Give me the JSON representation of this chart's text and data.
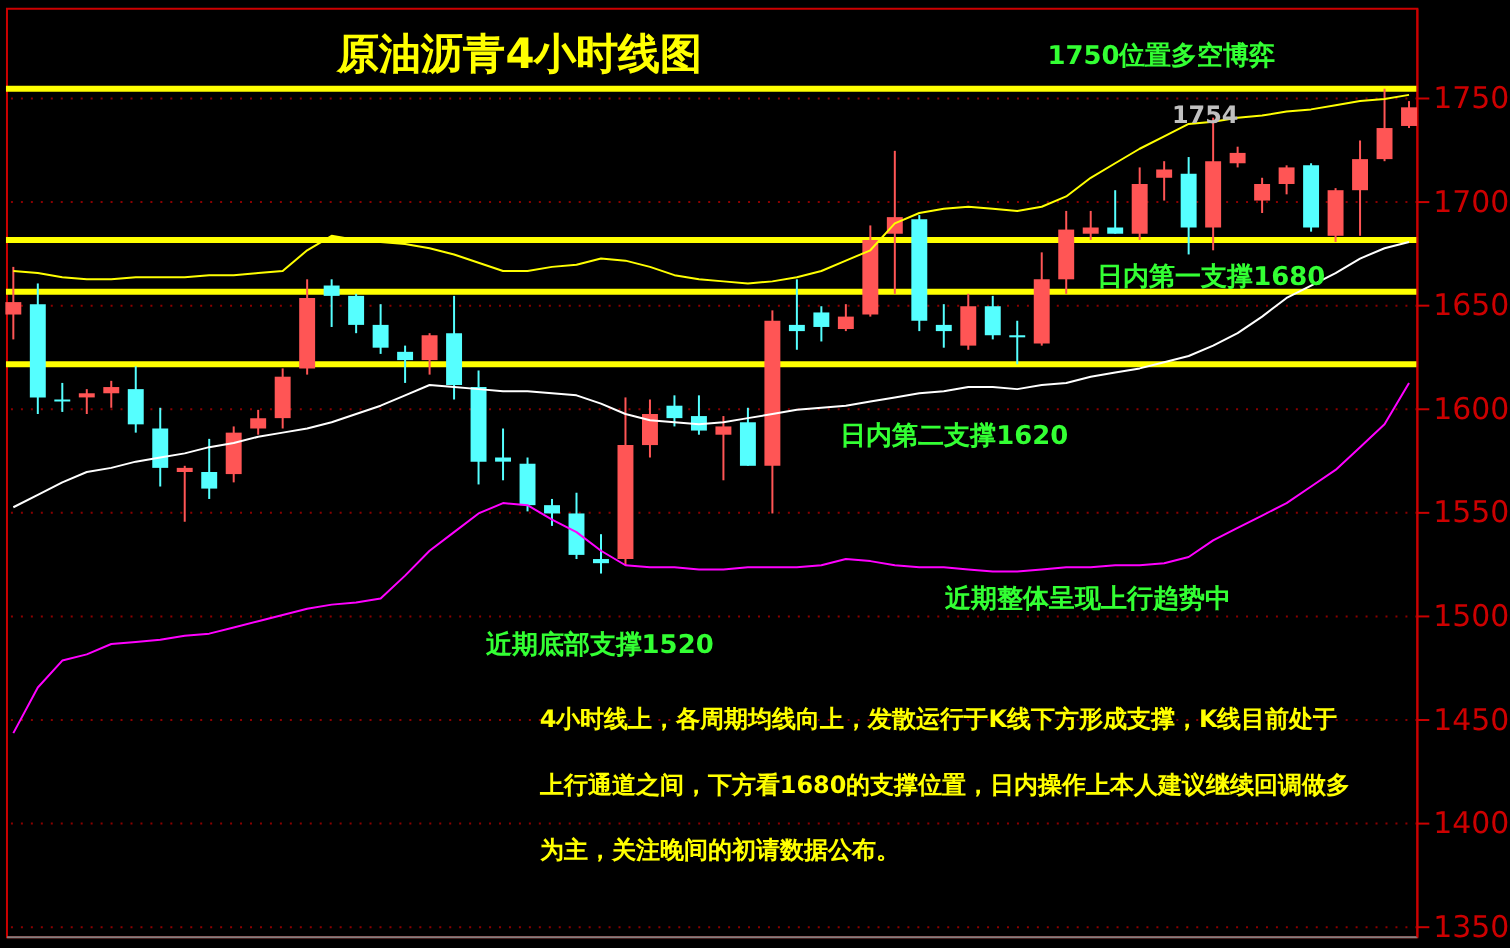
{
  "chart_data": {
    "type": "candlestick",
    "title": "原油沥青4小时线图",
    "categories": [
      null,
      null,
      null,
      null,
      null,
      null,
      null,
      null,
      null,
      null,
      null,
      null,
      null,
      null,
      null,
      null,
      null,
      null,
      null,
      null,
      null,
      null,
      null,
      null,
      null,
      null,
      null,
      null,
      null,
      null,
      null,
      null,
      null,
      null,
      null,
      null,
      null,
      null,
      null,
      null,
      null,
      null,
      null,
      null,
      null,
      null,
      null,
      null,
      null,
      null,
      null,
      null,
      null,
      null,
      null,
      null,
      null,
      null
    ],
    "ohlc": [
      [
        1645,
        1668,
        1633,
        1651
      ],
      [
        1650,
        1660,
        1597,
        1605
      ],
      [
        1604,
        1612,
        1598,
        1603
      ],
      [
        1605,
        1609,
        1597,
        1607
      ],
      [
        1607,
        1613,
        1600,
        1610
      ],
      [
        1609,
        1620,
        1588,
        1592
      ],
      [
        1590,
        1600,
        1562,
        1571
      ],
      [
        1569,
        1572,
        1545,
        1571
      ],
      [
        1569,
        1585,
        1556,
        1561
      ],
      [
        1568,
        1591,
        1564,
        1588
      ],
      [
        1590,
        1599,
        1587,
        1595
      ],
      [
        1595,
        1619,
        1590,
        1615
      ],
      [
        1619,
        1662,
        1616,
        1653
      ],
      [
        1659,
        1662,
        1639,
        1654
      ],
      [
        1654,
        1655,
        1636,
        1640
      ],
      [
        1640,
        1650,
        1626,
        1629
      ],
      [
        1627,
        1630,
        1612,
        1623
      ],
      [
        1623,
        1636,
        1616,
        1635
      ],
      [
        1636,
        1654,
        1604,
        1611
      ],
      [
        1610,
        1618,
        1563,
        1574
      ],
      [
        1576,
        1590,
        1565,
        1574
      ],
      [
        1573,
        1576,
        1550,
        1553
      ],
      [
        1553,
        1556,
        1543,
        1549
      ],
      [
        1549,
        1559,
        1527,
        1529
      ],
      [
        1527,
        1539,
        1520,
        1525
      ],
      [
        1527,
        1605,
        1524,
        1582
      ],
      [
        1582,
        1604,
        1576,
        1597
      ],
      [
        1601,
        1606,
        1591,
        1595
      ],
      [
        1596,
        1606,
        1587,
        1589
      ],
      [
        1587,
        1596,
        1565,
        1591
      ],
      [
        1593,
        1600,
        1572,
        1572
      ],
      [
        1572,
        1647,
        1549,
        1642
      ],
      [
        1640,
        1662,
        1628,
        1637
      ],
      [
        1646,
        1649,
        1632,
        1639
      ],
      [
        1638,
        1650,
        1637,
        1644
      ],
      [
        1645,
        1688,
        1644,
        1681
      ],
      [
        1684,
        1724,
        1655,
        1692
      ],
      [
        1691,
        1693,
        1637,
        1642
      ],
      [
        1640,
        1650,
        1629,
        1637
      ],
      [
        1630,
        1655,
        1628,
        1649
      ],
      [
        1649,
        1654,
        1633,
        1635
      ],
      [
        1635,
        1642,
        1621,
        1634
      ],
      [
        1631,
        1675,
        1630,
        1662
      ],
      [
        1662,
        1695,
        1655,
        1686
      ],
      [
        1684,
        1695,
        1681,
        1687
      ],
      [
        1687,
        1705,
        1684,
        1684
      ],
      [
        1684,
        1716,
        1681,
        1708
      ],
      [
        1711,
        1719,
        1700,
        1715
      ],
      [
        1713,
        1721,
        1674,
        1687
      ],
      [
        1687,
        1740,
        1676,
        1719
      ],
      [
        1718,
        1726,
        1716,
        1723
      ],
      [
        1700,
        1711,
        1694,
        1708
      ],
      [
        1708,
        1717,
        1703,
        1716
      ],
      [
        1717,
        1718,
        1685,
        1687
      ],
      [
        1683,
        1706,
        1680,
        1705
      ],
      [
        1705,
        1729,
        1683,
        1720
      ],
      [
        1720,
        1754,
        1719,
        1735
      ],
      [
        1736,
        1748,
        1735,
        1745
      ]
    ],
    "colors": [
      "#ff5555",
      "#55ffff",
      "#55ffff",
      "#ff5555",
      "#ff5555",
      "#55ffff",
      "#55ffff",
      "#ff5555",
      "#55ffff",
      "#ff5555",
      "#ff5555",
      "#ff5555",
      "#ff5555",
      "#55ffff",
      "#55ffff",
      "#55ffff",
      "#55ffff",
      "#ff5555",
      "#55ffff",
      "#55ffff",
      "#55ffff",
      "#55ffff",
      "#55ffff",
      "#55ffff",
      "#55ffff",
      "#ff5555",
      "#ff5555",
      "#55ffff",
      "#55ffff",
      "#ff5555",
      "#55ffff",
      "#ff5555",
      "#55ffff",
      "#55ffff",
      "#ff5555",
      "#ff5555",
      "#ff5555",
      "#55ffff",
      "#55ffff",
      "#ff5555",
      "#55ffff",
      "#55ffff",
      "#ff5555",
      "#ff5555",
      "#ff5555",
      "#55ffff",
      "#ff5555",
      "#ff5555",
      "#55ffff",
      "#ff5555",
      "#ff5555",
      "#ff5555",
      "#ff5555",
      "#55ffff",
      "#ff5555",
      "#ff5555",
      "#ff5555",
      "#ff5555"
    ],
    "series": [
      {
        "type": "line",
        "color": "#ffff00",
        "values": [
          1666,
          1665,
          1663,
          1662,
          1662,
          1663,
          1663,
          1663,
          1664,
          1664,
          1665,
          1666,
          1676,
          1683,
          1681,
          1680,
          1679,
          1677,
          1674,
          1670,
          1666,
          1666,
          1668,
          1669,
          1672,
          1671,
          1668,
          1664,
          1662,
          1661,
          1660,
          1661,
          1663,
          1666,
          1671,
          1676,
          1689,
          1694,
          1696,
          1697,
          1696,
          1695,
          1697,
          1702,
          1711,
          1718,
          1725,
          1731,
          1737,
          1738,
          1740,
          1741,
          1743,
          1744,
          1746,
          1748,
          1749,
          1751
        ]
      },
      {
        "type": "line",
        "color": "#ffffff",
        "values": [
          1552,
          1558,
          1564,
          1569,
          1571,
          1574,
          1576,
          1578,
          1581,
          1583,
          1586,
          1588,
          1590,
          1593,
          1597,
          1601,
          1606,
          1611,
          1610,
          1609,
          1608,
          1608,
          1607,
          1606,
          1602,
          1597,
          1594,
          1593,
          1592,
          1593,
          1595,
          1597,
          1599,
          1600,
          1601,
          1603,
          1605,
          1607,
          1608,
          1610,
          1610,
          1609,
          1611,
          1612,
          1615,
          1617,
          1619,
          1622,
          1625,
          1630,
          1636,
          1644,
          1653,
          1659,
          1665,
          1672,
          1677,
          1680
        ]
      },
      {
        "type": "line",
        "color": "#ff00ff",
        "values": [
          1443,
          1465,
          1478,
          1481,
          1486,
          1487,
          1488,
          1490,
          1491,
          1494,
          1497,
          1500,
          1503,
          1505,
          1506,
          1508,
          1519,
          1531,
          1540,
          1549,
          1554,
          1553,
          1546,
          1540,
          1531,
          1524,
          1523,
          1523,
          1522,
          1522,
          1523,
          1523,
          1523,
          1524,
          1527,
          1526,
          1524,
          1523,
          1523,
          1522,
          1521,
          1521,
          1522,
          1523,
          1523,
          1524,
          1524,
          1525,
          1528,
          1536,
          1542,
          1548,
          1554,
          1562,
          1570,
          1581,
          1592,
          1612
        ]
      }
    ],
    "ref_lines": [
      {
        "axis": "y",
        "value": 1754,
        "label": null,
        "color": "#ffff00"
      },
      {
        "axis": "y",
        "value": 1681,
        "label": null,
        "color": "#ffff00"
      },
      {
        "axis": "y",
        "value": 1656,
        "label": null,
        "color": "#ffff00"
      },
      {
        "axis": "y",
        "value": 1621,
        "label": null,
        "color": "#ffff00"
      }
    ],
    "annotations": [
      "1750位置多空博弈",
      "1754",
      "日内第一支撑1680",
      "日内第二支撑1620",
      "近期底部支撑1520",
      "近期整体呈现上行趋势中",
      "4小时线上，各周期均线向上，发散运行于K线下方形成支撑，K线目前处于上行通道之间，下方看1680的支撑位置，日内操作上本人建议继续回调做多为主，关注晚间的初请数据公布。"
    ],
    "ylim": [
      1345,
      1793
    ],
    "yticks": [
      1350,
      1400,
      1450,
      1500,
      1550,
      1600,
      1650,
      1700,
      1750
    ],
    "grid": "y",
    "tick_labels": "y"
  }
}
